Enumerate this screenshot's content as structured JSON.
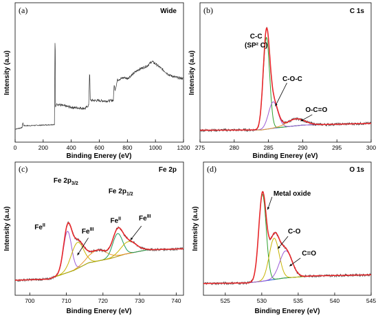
{
  "figure": {
    "panels": [
      {
        "label": "(a)",
        "title": "Wide"
      },
      {
        "label": "(b)",
        "title": "C 1s"
      },
      {
        "label": "(c)",
        "title": "Fe 2p"
      },
      {
        "label": "(d)",
        "title": "O 1s"
      }
    ]
  },
  "colors": {
    "raw": "#333333",
    "envelope": "#e8262a",
    "background": "#1f4ed8",
    "green": "#2ca02c",
    "purple": "#9b59d6",
    "orange": "#e8952b",
    "olive": "#c8b400",
    "darkgreen": "#1e9a5a"
  },
  "chart_data": [
    {
      "type": "line",
      "title": "Wide",
      "panel_label": "(a)",
      "xlabel": "Binding Enerey (eV)",
      "ylabel": "Intensity (a.u)",
      "xlim": [
        0,
        1200
      ],
      "xticks": [
        "0",
        "200",
        "400",
        "600",
        "800",
        "1000",
        "1200"
      ],
      "xtick_values": [
        0,
        200,
        400,
        600,
        800,
        1000,
        1200
      ],
      "yticks": "none",
      "series": [
        {
          "role": "survey spectrum",
          "x": [
            0,
            40,
            50,
            55,
            60,
            100,
            200,
            280,
            285,
            288,
            295,
            320,
            400,
            500,
            525,
            531,
            536,
            560,
            650,
            700,
            706,
            711,
            718,
            730,
            780,
            800,
            850,
            880,
            900,
            940,
            975,
            1000,
            1050,
            1100,
            1150,
            1200
          ],
          "y": [
            3,
            4,
            4.5,
            9,
            6,
            6,
            6.5,
            7,
            96,
            22,
            25,
            24,
            22,
            21,
            24,
            56,
            28,
            28,
            27.5,
            28,
            42,
            37,
            40,
            46,
            48,
            47,
            52,
            55,
            56,
            58,
            62,
            60,
            55,
            50,
            48,
            47
          ]
        }
      ]
    },
    {
      "type": "line",
      "title": "C 1s",
      "panel_label": "(b)",
      "xlabel": "Binding Enerey (eV)",
      "ylabel": "Intensity (a.u)",
      "xlim": [
        275,
        300
      ],
      "xticks": [
        "275",
        "280",
        "285",
        "290",
        "295",
        "300"
      ],
      "xtick_values": [
        275,
        280,
        285,
        290,
        295,
        300
      ],
      "yticks": "none",
      "annotations": [
        {
          "text_lines": [
            "C-C",
            "(SP² C)"
          ],
          "x": 283.2,
          "y": 82
        },
        {
          "text": "C-O-C",
          "x": 288.5,
          "y": 45
        },
        {
          "text": "O-C=O",
          "x": 292.0,
          "y": 18
        }
      ],
      "components": [
        {
          "name": "C-C",
          "center": 284.7,
          "height": 80,
          "fwhm": 1.1,
          "color": "green"
        },
        {
          "name": "C-O-C",
          "center": 285.7,
          "height": 23,
          "fwhm": 1.6,
          "color": "purple"
        },
        {
          "name": "O-C=O",
          "center": 289.0,
          "height": 6,
          "fwhm": 3.0,
          "color": "orange"
        }
      ],
      "background_line": {
        "x": [
          275,
          284,
          286,
          290,
          300
        ],
        "y": [
          2,
          2.3,
          4,
          6.5,
          8
        ]
      },
      "baseline": 2,
      "ylim": [
        0,
        100
      ]
    },
    {
      "type": "line",
      "title": "Fe 2p",
      "panel_label": "(c)",
      "xlabel": "Binding Enerey (eV)",
      "ylabel": "Intensity (a.u)",
      "xlim": [
        696,
        742
      ],
      "xticks": [
        "700",
        "710",
        "720",
        "730",
        "740"
      ],
      "xtick_values": [
        700,
        710,
        720,
        730,
        740
      ],
      "yticks": "none",
      "annotations": [
        {
          "text": "Fe 2p",
          "sub": "3/2",
          "x": 706.5,
          "y": 95
        },
        {
          "text": "Fe 2p",
          "sub": "1/2",
          "x": 721.5,
          "y": 85
        },
        {
          "text": "Fe",
          "sup": "II",
          "x": 701.3,
          "y": 52
        },
        {
          "text": "Fe",
          "sup": "III",
          "x": 714.2,
          "y": 48
        },
        {
          "text": "Fe",
          "sup": "II",
          "x": 722.0,
          "y": 58
        },
        {
          "text": "Fe",
          "sup": "III",
          "x": 729.8,
          "y": 60
        }
      ],
      "components": [
        {
          "name": "Fe2+ 2p3/2",
          "center": 710.3,
          "height": 38,
          "fwhm": 2.6,
          "color": "purple"
        },
        {
          "name": "Fe3+ 2p3/2",
          "center": 713.0,
          "height": 24,
          "fwhm": 4.0,
          "color": "olive"
        },
        {
          "name": "satellite",
          "center": 718.5,
          "height": 10,
          "fwhm": 6.0,
          "color": "orange"
        },
        {
          "name": "Fe2+ 2p1/2",
          "center": 724.0,
          "height": 21,
          "fwhm": 3.2,
          "color": "darkgreen"
        },
        {
          "name": "Fe3+ 2p1/2",
          "center": 727.0,
          "height": 11,
          "fwhm": 5.0,
          "color": "olive"
        }
      ],
      "background_line": {
        "x": [
          696,
          705,
          712,
          716,
          722,
          726,
          732,
          742
        ],
        "y": [
          5,
          6,
          14,
          21,
          25,
          29,
          33,
          34
        ]
      },
      "baseline": 5,
      "ylim": [
        0,
        100
      ]
    },
    {
      "type": "line",
      "title": "O 1s",
      "panel_label": "(d)",
      "xlabel": "Binding Enerey (eV)",
      "ylabel": "Intensity (a.u)",
      "xlim": [
        522,
        545
      ],
      "xticks": [
        "525",
        "530",
        "535",
        "540",
        "545"
      ],
      "xtick_values": [
        525,
        530,
        535,
        540,
        545
      ],
      "yticks": "none",
      "annotations": [
        {
          "text": "Metal oxide",
          "x": 531.6,
          "y": 83
        },
        {
          "text": "C-O",
          "x": 533.6,
          "y": 48
        },
        {
          "text": "C=O",
          "x": 535.5,
          "y": 28
        }
      ],
      "components": [
        {
          "name": "Metal oxide",
          "center": 530.1,
          "height": 80,
          "fwhm": 1.2,
          "color": "green"
        },
        {
          "name": "C-O",
          "center": 531.7,
          "height": 38,
          "fwhm": 1.6,
          "color": "olive"
        },
        {
          "name": "C=O",
          "center": 533.3,
          "height": 25,
          "fwhm": 2.0,
          "color": "purple"
        }
      ],
      "background_line": {
        "x": [
          522,
          528,
          530,
          533,
          537,
          545
        ],
        "y": [
          2,
          2.5,
          4,
          7,
          9,
          10
        ]
      },
      "baseline": 2,
      "ylim": [
        0,
        100
      ]
    }
  ]
}
